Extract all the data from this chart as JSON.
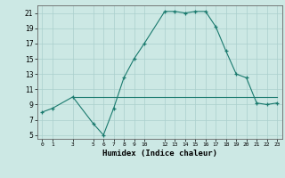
{
  "xlabel": "Humidex (Indice chaleur)",
  "x_main": [
    0,
    1,
    3,
    5,
    6,
    7,
    8,
    9,
    10,
    12,
    13,
    14,
    15,
    16,
    17,
    18,
    19,
    20,
    21,
    22,
    23
  ],
  "y_main": [
    8,
    8.5,
    10,
    6.5,
    5,
    8.5,
    12.5,
    15,
    17,
    21.2,
    21.2,
    21,
    21.2,
    21.2,
    19.2,
    16,
    13,
    12.5,
    9.2,
    9,
    9.2
  ],
  "x_flat": [
    3,
    5,
    6,
    7,
    8,
    9,
    10,
    12,
    13,
    14,
    15,
    16,
    17,
    18,
    19,
    20,
    21,
    22,
    23
  ],
  "y_flat": [
    10,
    10,
    10,
    10,
    10,
    10,
    10,
    10,
    10,
    10,
    10,
    10,
    10,
    10,
    10,
    10,
    10,
    10,
    10
  ],
  "line_color": "#1a7a6e",
  "bg_color": "#cce8e4",
  "grid_color": "#aacfcc",
  "ylim": [
    4.5,
    22
  ],
  "xlim": [
    -0.5,
    23.5
  ],
  "yticks": [
    5,
    7,
    9,
    11,
    13,
    15,
    17,
    19,
    21
  ],
  "xticks": [
    0,
    1,
    3,
    5,
    6,
    7,
    8,
    9,
    10,
    12,
    13,
    14,
    15,
    16,
    17,
    18,
    19,
    20,
    21,
    22,
    23
  ]
}
